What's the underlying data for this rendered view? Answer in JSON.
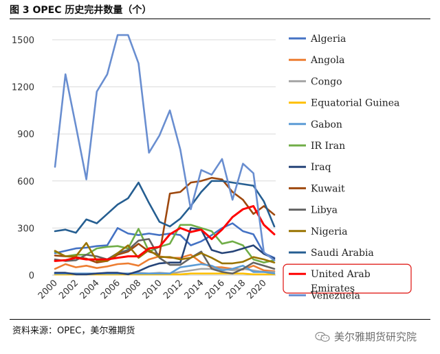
{
  "figure": {
    "title": "图 3   OPEC 历史完井数量（个）",
    "source": "资料来源：OPEC，美尔雅期货",
    "watermark": "美尔雅期货研究院",
    "watermark_icon": "wechat-icon"
  },
  "chart_data": {
    "type": "line",
    "title": "OPEC 历史完井数量（个）",
    "xlabel": "",
    "ylabel": "",
    "x": [
      2000,
      2001,
      2002,
      2003,
      2004,
      2005,
      2006,
      2007,
      2008,
      2009,
      2010,
      2011,
      2012,
      2013,
      2014,
      2015,
      2016,
      2017,
      2018,
      2019,
      2020,
      2021
    ],
    "x_ticks": [
      "2000",
      "2002",
      "2004",
      "2006",
      "2008",
      "2010",
      "2012",
      "2014",
      "2016",
      "2018",
      "2020"
    ],
    "y_ticks": [
      "0",
      "300",
      "600",
      "900",
      "1200",
      "1500"
    ],
    "ylim": [
      0,
      1500
    ],
    "legend_position": "right",
    "highlighted_series": "United Arab Emirates",
    "series": [
      {
        "name": "Algeria",
        "color": "#4472C4",
        "values": [
          140,
          155,
          170,
          175,
          185,
          190,
          300,
          265,
          255,
          265,
          255,
          265,
          255,
          190,
          215,
          255,
          300,
          330,
          280,
          260,
          140,
          110
        ]
      },
      {
        "name": "Angola",
        "color": "#ED7D31",
        "values": [
          40,
          70,
          50,
          60,
          45,
          55,
          70,
          75,
          60,
          100,
          120,
          110,
          110,
          130,
          80,
          50,
          50,
          40,
          35,
          60,
          30,
          25
        ]
      },
      {
        "name": "Congo",
        "color": "#A5A5A5",
        "values": [
          5,
          10,
          10,
          5,
          10,
          10,
          10,
          10,
          15,
          10,
          15,
          10,
          20,
          30,
          40,
          40,
          40,
          30,
          40,
          30,
          20,
          20
        ]
      },
      {
        "name": "Equatorial Guinea",
        "color": "#FFC000",
        "values": [
          5,
          5,
          5,
          5,
          5,
          5,
          5,
          5,
          5,
          5,
          5,
          5,
          5,
          10,
          10,
          10,
          10,
          10,
          10,
          5,
          5,
          5
        ]
      },
      {
        "name": "Gabon",
        "color": "#5B9BD5",
        "values": [
          10,
          10,
          10,
          10,
          10,
          10,
          10,
          10,
          10,
          10,
          10,
          10,
          50,
          60,
          70,
          60,
          30,
          40,
          60,
          20,
          20,
          10
        ]
      },
      {
        "name": "IR Iran",
        "color": "#70AD47",
        "values": [
          150,
          120,
          130,
          130,
          170,
          180,
          185,
          170,
          295,
          150,
          180,
          200,
          320,
          320,
          300,
          280,
          200,
          215,
          190,
          100,
          80,
          95
        ]
      },
      {
        "name": "Iraq",
        "color": "#264478",
        "values": [
          15,
          15,
          5,
          5,
          10,
          15,
          15,
          5,
          25,
          55,
          75,
          80,
          80,
          300,
          290,
          160,
          140,
          150,
          170,
          190,
          135,
          105
        ]
      },
      {
        "name": "Kuwait",
        "color": "#9E480E",
        "values": [
          125,
          120,
          115,
          105,
          80,
          90,
          130,
          150,
          200,
          150,
          130,
          520,
          530,
          590,
          600,
          620,
          610,
          530,
          480,
          390,
          440,
          385
        ]
      },
      {
        "name": "Libya",
        "color": "#636363",
        "values": [
          100,
          90,
          95,
          130,
          120,
          100,
          140,
          160,
          220,
          230,
          110,
          65,
          65,
          110,
          150,
          40,
          20,
          10,
          40,
          80,
          60,
          40
        ]
      },
      {
        "name": "Nigeria",
        "color": "#997300",
        "values": [
          155,
          120,
          120,
          205,
          90,
          90,
          140,
          190,
          110,
          160,
          115,
          115,
          100,
          110,
          140,
          110,
          75,
          75,
          85,
          115,
          100,
          80
        ]
      },
      {
        "name": "Saudi Arabia",
        "color": "#255E91",
        "values": [
          280,
          290,
          270,
          355,
          330,
          390,
          450,
          490,
          590,
          460,
          340,
          310,
          360,
          440,
          530,
          600,
          600,
          590,
          580,
          570,
          470,
          310
        ]
      },
      {
        "name": "United Arab Emirates",
        "color": "#FF0000",
        "values": [
          90,
          95,
          110,
          100,
          100,
          100,
          110,
          120,
          120,
          170,
          180,
          260,
          300,
          275,
          290,
          230,
          290,
          370,
          420,
          440,
          320,
          260
        ]
      },
      {
        "name": "Venezuela",
        "color": "#698ED0",
        "values": [
          690,
          1280,
          950,
          610,
          1170,
          1280,
          1530,
          1530,
          1350,
          780,
          890,
          1050,
          800,
          420,
          670,
          640,
          740,
          480,
          710,
          650,
          145,
          95
        ]
      }
    ]
  }
}
